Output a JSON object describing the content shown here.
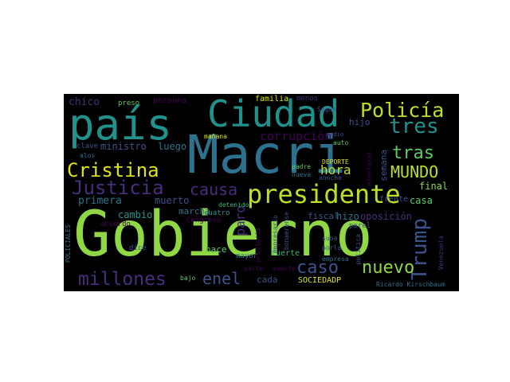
{
  "colors": {
    "background": "#000000",
    "page": "#ffffff",
    "lime": "#8fd744",
    "yellow_green": "#bddf26",
    "yellow": "#dde318",
    "green": "#5ec962",
    "teal": "#21918c",
    "blue_teal": "#2c728e",
    "blue": "#3b528b",
    "indigo": "#472d7b",
    "purple": "#440154",
    "mint": "#35b779"
  },
  "words": [
    {
      "text": "Gobierno"
    },
    {
      "text": "Macri"
    },
    {
      "text": "país"
    },
    {
      "text": "Ciudad"
    },
    {
      "text": "presidente"
    },
    {
      "text": "Cristina"
    },
    {
      "text": "Policía"
    },
    {
      "text": "Justicia"
    },
    {
      "text": "millones"
    },
    {
      "text": "Trump"
    },
    {
      "text": "tres"
    },
    {
      "text": "tras"
    },
    {
      "text": "MUNDO"
    },
    {
      "text": "caso"
    },
    {
      "text": "nuevo"
    },
    {
      "text": "causa"
    },
    {
      "text": "enel"
    },
    {
      "text": "hora"
    },
    {
      "text": "corrupción"
    },
    {
      "text": "chico"
    },
    {
      "text": "ministro"
    },
    {
      "text": "luego"
    },
    {
      "text": "primera"
    },
    {
      "text": "cambio"
    },
    {
      "text": "paro"
    },
    {
      "text": "muerto"
    },
    {
      "text": "marcha"
    },
    {
      "text": "Congreso"
    },
    {
      "text": "hizo"
    },
    {
      "text": "fiscal"
    },
    {
      "text": "oposición"
    },
    {
      "text": "final"
    },
    {
      "text": "semana"
    },
    {
      "text": "frente"
    },
    {
      "text": "casa"
    },
    {
      "text": "hijo"
    },
    {
      "text": "familia"
    },
    {
      "text": "menos"
    },
    {
      "text": "Según"
    },
    {
      "text": "persona"
    },
    {
      "text": "preso"
    },
    {
      "text": "mañana"
    },
    {
      "text": "clave"
    },
    {
      "text": "alos"
    },
    {
      "text": "acuerdo"
    },
    {
      "text": "dice"
    },
    {
      "text": "bajo"
    },
    {
      "text": "hace"
    },
    {
      "text": "cuatro"
    },
    {
      "text": "detenido"
    },
    {
      "text": "mayor"
    },
    {
      "text": "fuerte"
    },
    {
      "text": "parte"
    },
    {
      "text": "muerte"
    },
    {
      "text": "cada"
    },
    {
      "text": "SOCIEDADP"
    },
    {
      "text": "porel"
    },
    {
      "text": "suba"
    },
    {
      "text": "porla"
    },
    {
      "text": "empresa"
    },
    {
      "text": "política"
    },
    {
      "text": "Ricardo Kirschbaum"
    },
    {
      "text": "Venezuela"
    },
    {
      "text": "POLICIALES"
    },
    {
      "text": "DEPORTE"
    },
    {
      "text": "anoche"
    },
    {
      "text": "padre"
    },
    {
      "text": "nueva"
    },
    {
      "text": "auto"
    },
    {
      "text": "medio"
    },
    {
      "text": "electoral"
    },
    {
      "text": "empresario"
    },
    {
      "text": "bonaerense"
    },
    {
      "text": "provincia"
    }
  ]
}
